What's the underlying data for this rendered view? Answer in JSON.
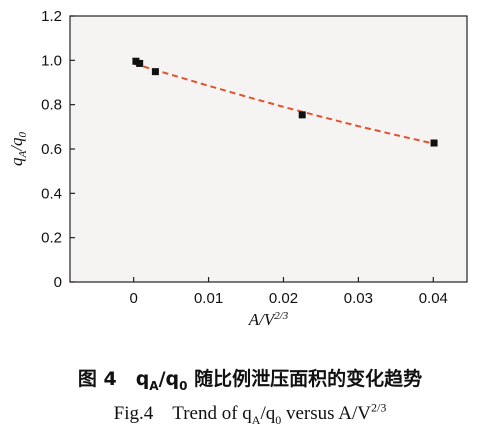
{
  "chart_data": {
    "type": "scatter",
    "xlabel": "A/V^{2/3}",
    "ylabel": "q_A/q_0",
    "xlim": [
      -0.0085,
      0.0445
    ],
    "ylim": [
      0,
      1.2
    ],
    "x_ticks": [
      "0",
      "0.01",
      "0.02",
      "0.03",
      "0.04"
    ],
    "y_ticks": [
      "0",
      "0.2",
      "0.4",
      "0.6",
      "0.8",
      "1.0",
      "1.2"
    ],
    "grid": false,
    "series": [
      {
        "type": "scatter",
        "marker": "square",
        "color": "#111111",
        "x": [
          0.0003,
          0.0008,
          0.0029,
          0.0225,
          0.0401
        ],
        "y": [
          0.996,
          0.986,
          0.949,
          0.754,
          0.627
        ]
      },
      {
        "type": "line",
        "style": "dashed",
        "color": "#e0532f",
        "x": [
          0,
          0.005,
          0.01,
          0.015,
          0.02,
          0.025,
          0.03,
          0.035,
          0.04
        ],
        "y": [
          0.985,
          0.935,
          0.885,
          0.837,
          0.79,
          0.746,
          0.703,
          0.663,
          0.625
        ]
      }
    ]
  },
  "caption": {
    "cn": "图 4　q_A/q_0 随比例泄压面积的变化趋势",
    "en": "Fig.4　Trend of q_A/q_0 versus A/V^{2/3}"
  },
  "colors": {
    "plot_background": "#f5f4f2",
    "fit_line": "#e0532f",
    "markers": "#111111"
  }
}
